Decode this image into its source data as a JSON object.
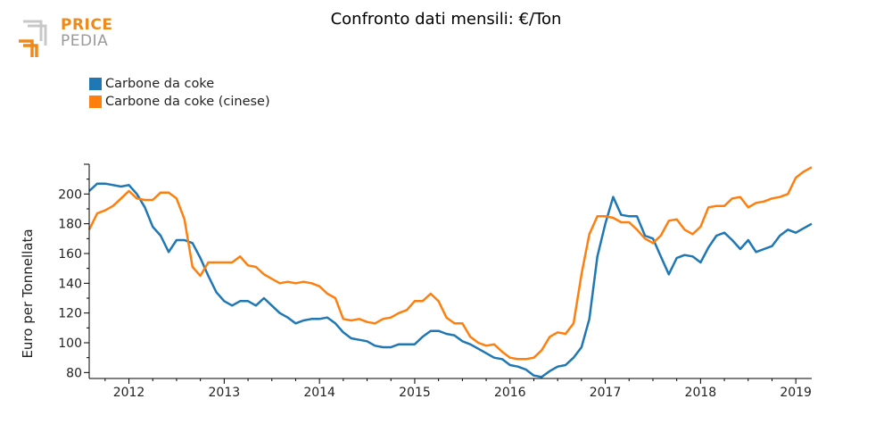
{
  "logo": {
    "line1": "PRICE",
    "line2": "PEDIA"
  },
  "colors": {
    "series1": "#1f77b4",
    "series2": "#ff7f0e",
    "logo_orange": "#ef8a1a",
    "logo_gray": "#9a9a9a"
  },
  "chart_data": {
    "type": "line",
    "title": "Confronto dati mensili: €/Ton",
    "xlabel": "",
    "ylabel": "Euro per Tonnellata",
    "xlim": [
      2011.583,
      2019.167
    ],
    "ylim": [
      76,
      220
    ],
    "yticks": [
      80,
      100,
      120,
      140,
      160,
      180,
      200
    ],
    "xticks": [
      2012,
      2013,
      2014,
      2015,
      2016,
      2017,
      2018,
      2019
    ],
    "legend_position": "top-left",
    "grid": false,
    "series": [
      {
        "name": "Carbone da coke",
        "color": "#1f77b4",
        "x": [
          2011.583,
          2011.667,
          2011.75,
          2011.833,
          2011.917,
          2012,
          2012.083,
          2012.167,
          2012.25,
          2012.333,
          2012.417,
          2012.5,
          2012.583,
          2012.667,
          2012.75,
          2012.833,
          2012.917,
          2013,
          2013.083,
          2013.167,
          2013.25,
          2013.333,
          2013.417,
          2013.5,
          2013.583,
          2013.667,
          2013.75,
          2013.833,
          2013.917,
          2014,
          2014.083,
          2014.167,
          2014.25,
          2014.333,
          2014.417,
          2014.5,
          2014.583,
          2014.667,
          2014.75,
          2014.833,
          2014.917,
          2015,
          2015.083,
          2015.167,
          2015.25,
          2015.333,
          2015.417,
          2015.5,
          2015.583,
          2015.667,
          2015.75,
          2015.833,
          2015.917,
          2016,
          2016.083,
          2016.167,
          2016.25,
          2016.333,
          2016.417,
          2016.5,
          2016.583,
          2016.667,
          2016.75,
          2016.833,
          2016.917,
          2017,
          2017.083,
          2017.167,
          2017.25,
          2017.333,
          2017.417,
          2017.5,
          2017.583,
          2017.667,
          2017.75,
          2017.833,
          2017.917,
          2018,
          2018.083,
          2018.167,
          2018.25,
          2018.333,
          2018.417,
          2018.5,
          2018.583,
          2018.667,
          2018.75,
          2018.833,
          2018.917,
          2019,
          2019.083,
          2019.167
        ],
        "values": [
          202,
          207,
          207,
          206,
          205,
          206,
          200,
          191,
          178,
          172,
          161,
          169,
          169,
          167,
          157,
          145,
          134,
          128,
          125,
          128,
          128,
          125,
          130,
          125,
          120,
          117,
          113,
          115,
          116,
          116,
          117,
          113,
          107,
          103,
          102,
          101,
          98,
          97,
          97,
          99,
          99,
          99,
          104,
          108,
          108,
          106,
          105,
          101,
          99,
          96,
          93,
          90,
          89,
          85,
          84,
          82,
          78,
          77,
          81,
          84,
          85,
          90,
          97,
          116,
          158,
          180,
          198,
          186,
          185,
          185,
          172,
          170,
          158,
          146,
          157,
          159,
          158,
          154,
          164,
          172,
          174,
          169,
          163,
          169,
          161,
          163,
          165,
          172,
          176,
          174,
          177,
          180
        ]
      },
      {
        "name": "Carbone da coke (cinese)",
        "color": "#ff7f0e",
        "x": [
          2011.583,
          2011.667,
          2011.75,
          2011.833,
          2011.917,
          2012,
          2012.083,
          2012.167,
          2012.25,
          2012.333,
          2012.417,
          2012.5,
          2012.583,
          2012.667,
          2012.75,
          2012.833,
          2012.917,
          2013,
          2013.083,
          2013.167,
          2013.25,
          2013.333,
          2013.417,
          2013.5,
          2013.583,
          2013.667,
          2013.75,
          2013.833,
          2013.917,
          2014,
          2014.083,
          2014.167,
          2014.25,
          2014.333,
          2014.417,
          2014.5,
          2014.583,
          2014.667,
          2014.75,
          2014.833,
          2014.917,
          2015,
          2015.083,
          2015.167,
          2015.25,
          2015.333,
          2015.417,
          2015.5,
          2015.583,
          2015.667,
          2015.75,
          2015.833,
          2015.917,
          2016,
          2016.083,
          2016.167,
          2016.25,
          2016.333,
          2016.417,
          2016.5,
          2016.583,
          2016.667,
          2016.75,
          2016.833,
          2016.917,
          2017,
          2017.083,
          2017.167,
          2017.25,
          2017.333,
          2017.417,
          2017.5,
          2017.583,
          2017.667,
          2017.75,
          2017.833,
          2017.917,
          2018,
          2018.083,
          2018.167,
          2018.25,
          2018.333,
          2018.417,
          2018.5,
          2018.583,
          2018.667,
          2018.75,
          2018.833,
          2018.917,
          2019,
          2019.083,
          2019.167
        ],
        "values": [
          176,
          187,
          189,
          192,
          197,
          202,
          197,
          196,
          196,
          201,
          201,
          197,
          183,
          151,
          145,
          154,
          154,
          154,
          154,
          158,
          152,
          151,
          146,
          143,
          140,
          141,
          140,
          141,
          140,
          138,
          133,
          130,
          116,
          115,
          116,
          114,
          113,
          116,
          117,
          120,
          122,
          128,
          128,
          133,
          128,
          117,
          113,
          113,
          104,
          100,
          98,
          99,
          94,
          90,
          89,
          89,
          90,
          95,
          104,
          107,
          106,
          113,
          146,
          173,
          185,
          185,
          184,
          181,
          181,
          176,
          170,
          167,
          172,
          182,
          183,
          176,
          173,
          178,
          191,
          192,
          192,
          197,
          198,
          191,
          194,
          195,
          197,
          198,
          200,
          211,
          215,
          218
        ]
      }
    ]
  }
}
